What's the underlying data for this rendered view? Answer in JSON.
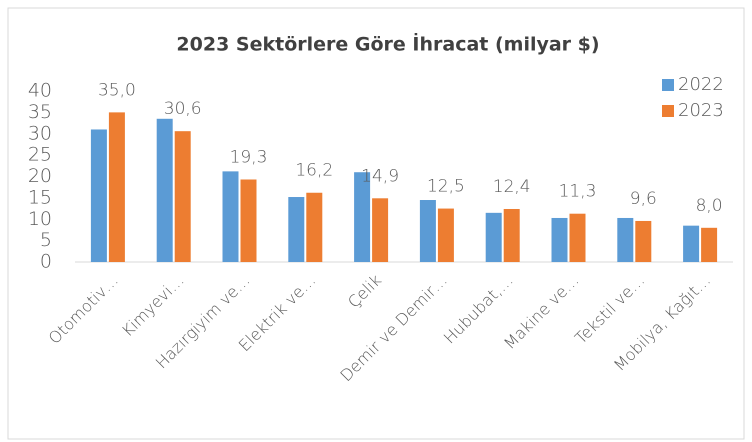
{
  "chart_data": {
    "type": "bar",
    "title": "2023 Sektörlere Göre İhracat (milyar $)",
    "categories": [
      "Otomotiv…",
      "Kimyevi…",
      "Hazırgiyim ve…",
      "Elektrik ve…",
      "Çelik",
      "Demir ve Demir…",
      "Hububat,…",
      "Makine ve…",
      "Tekstil ve…",
      "Mobilya, Kağıt…"
    ],
    "series": [
      {
        "name": "2022",
        "color": "#5b9bd5",
        "values": [
          31,
          33.5,
          21.2,
          15.2,
          21,
          14.5,
          11.5,
          10.3,
          10.3,
          8.5
        ]
      },
      {
        "name": "2023",
        "color": "#ed7d31",
        "values": [
          35.0,
          30.6,
          19.3,
          16.2,
          14.9,
          12.5,
          12.4,
          11.3,
          9.6,
          8.0
        ],
        "value_labels": [
          "35,0",
          "30,6",
          "19,3",
          "16,2",
          "14,9",
          "12,5",
          "12,4",
          "11,3",
          "9,6",
          "8,0"
        ]
      }
    ],
    "ylim": [
      0,
      40
    ],
    "yticks": [
      0,
      5,
      10,
      15,
      20,
      25,
      30,
      35,
      40
    ],
    "legend": "top-right",
    "grid": false
  }
}
